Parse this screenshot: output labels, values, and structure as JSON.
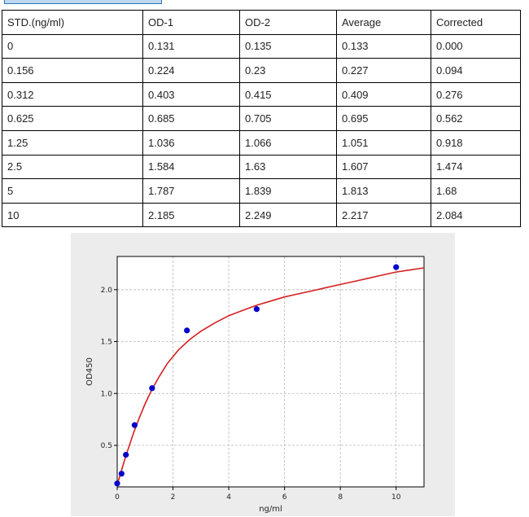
{
  "table": {
    "headers": [
      "STD.(ng/ml)",
      "OD-1",
      "OD-2",
      "Average",
      "Corrected"
    ],
    "rows": [
      [
        "0",
        "0.131",
        "0.135",
        "0.133",
        "0.000"
      ],
      [
        "0.156",
        "0.224",
        "0.23",
        "0.227",
        "0.094"
      ],
      [
        "0.312",
        "0.403",
        "0.415",
        "0.409",
        "0.276"
      ],
      [
        "0.625",
        "0.685",
        "0.705",
        "0.695",
        "0.562"
      ],
      [
        "1.25",
        "1.036",
        "1.066",
        "1.051",
        "0.918"
      ],
      [
        "2.5",
        "1.584",
        "1.63",
        "1.607",
        "1.474"
      ],
      [
        "5",
        "1.787",
        "1.839",
        "1.813",
        "1.68"
      ],
      [
        "10",
        "2.185",
        "2.249",
        "2.217",
        "2.084"
      ]
    ]
  },
  "chart_data": {
    "type": "scatter",
    "title": "",
    "xlabel": "ng/ml",
    "ylabel": "OD450",
    "xlim": [
      0,
      11
    ],
    "ylim": [
      0.1,
      2.32
    ],
    "xticks": [
      0,
      2,
      4,
      6,
      8,
      10
    ],
    "yticks": [
      0.5,
      1.0,
      1.5,
      2.0
    ],
    "ytick_labels": [
      "0.5",
      "1.0",
      "1.5",
      "2.0"
    ],
    "grid": true,
    "points": {
      "x": [
        0,
        0.156,
        0.312,
        0.625,
        1.25,
        2.5,
        5,
        10
      ],
      "y": [
        0.133,
        0.227,
        0.409,
        0.695,
        1.051,
        1.607,
        1.813,
        2.217
      ],
      "color": "#0000cc"
    },
    "fit_curve": {
      "x": [
        0,
        0.1,
        0.2,
        0.3,
        0.45,
        0.6,
        0.8,
        1.0,
        1.25,
        1.5,
        1.8,
        2.2,
        2.6,
        3.0,
        3.5,
        4.0,
        4.5,
        5.0,
        5.5,
        6.0,
        6.5,
        7.0,
        7.5,
        8.0,
        8.5,
        9.0,
        9.5,
        10.0,
        10.5,
        11.0
      ],
      "y": [
        0.12,
        0.21,
        0.3,
        0.39,
        0.51,
        0.63,
        0.77,
        0.9,
        1.04,
        1.16,
        1.29,
        1.42,
        1.52,
        1.6,
        1.68,
        1.75,
        1.8,
        1.85,
        1.89,
        1.93,
        1.96,
        1.99,
        2.02,
        2.05,
        2.08,
        2.11,
        2.14,
        2.17,
        2.19,
        2.21
      ],
      "color": "#d42020"
    }
  }
}
